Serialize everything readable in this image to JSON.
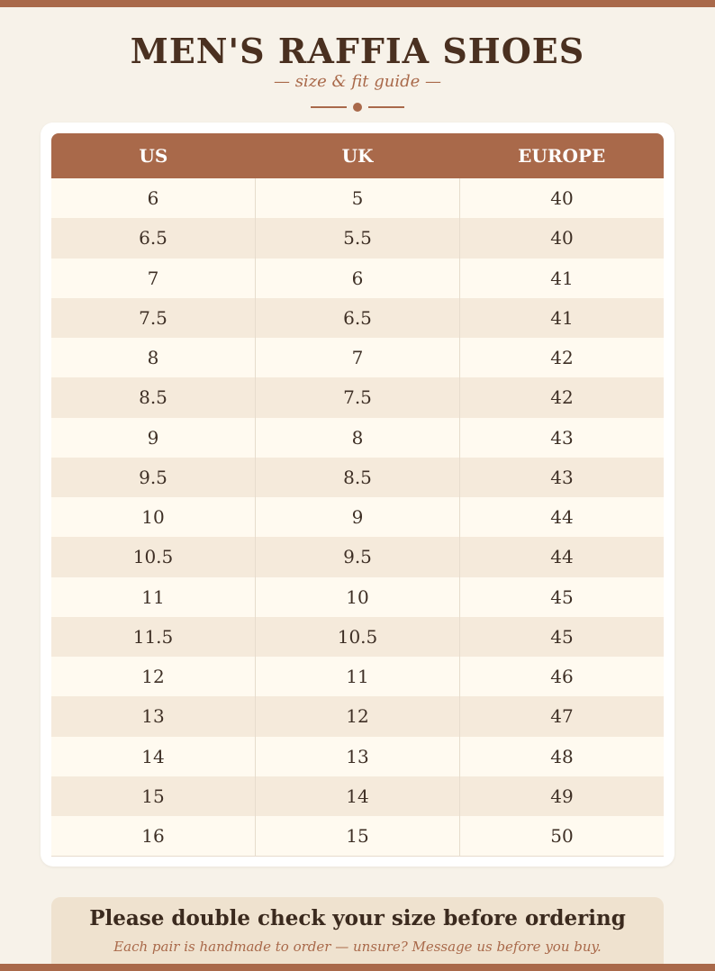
{
  "header": {
    "title": "MEN'S RAFFIA SHOES",
    "subtitle": "— size & fit guide —"
  },
  "colors": {
    "accent": "#a9694a",
    "background": "#f7f2e9",
    "text": "#4a3020",
    "row_alt": "#f5eadb",
    "note_bg": "#efe2cf"
  },
  "table": {
    "columns": [
      "US",
      "UK",
      "EUROPE"
    ],
    "rows": [
      [
        "6",
        "5",
        "40"
      ],
      [
        "6.5",
        "5.5",
        "40"
      ],
      [
        "7",
        "6",
        "41"
      ],
      [
        "7.5",
        "6.5",
        "41"
      ],
      [
        "8",
        "7",
        "42"
      ],
      [
        "8.5",
        "7.5",
        "42"
      ],
      [
        "9",
        "8",
        "43"
      ],
      [
        "9.5",
        "8.5",
        "43"
      ],
      [
        "10",
        "9",
        "44"
      ],
      [
        "10.5",
        "9.5",
        "44"
      ],
      [
        "11",
        "10",
        "45"
      ],
      [
        "11.5",
        "10.5",
        "45"
      ],
      [
        "12",
        "11",
        "46"
      ],
      [
        "13",
        "12",
        "47"
      ],
      [
        "14",
        "13",
        "48"
      ],
      [
        "15",
        "14",
        "49"
      ],
      [
        "16",
        "15",
        "50"
      ]
    ]
  },
  "note": {
    "title": "Please double check your size before ordering",
    "subtitle": "Each pair is handmade to order — unsure? Message us before you buy."
  }
}
